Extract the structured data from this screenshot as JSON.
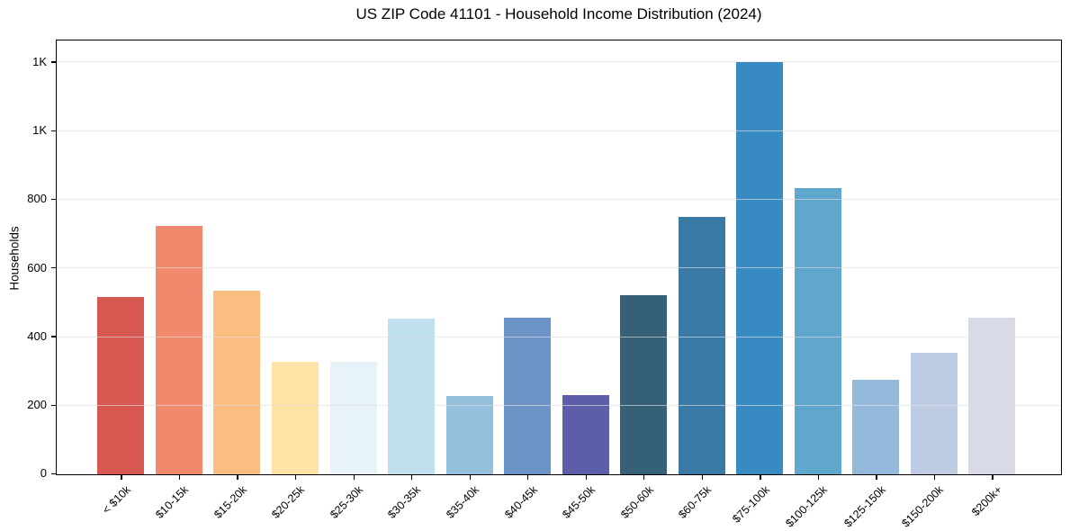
{
  "chart_data": {
    "type": "bar",
    "title": "US ZIP Code 41101 - Household Income Distribution (2024)",
    "xlabel": "",
    "ylabel": "Households",
    "categories": [
      "< $10k",
      "$10-15k",
      "$15-20k",
      "$20-25k",
      "$25-30k",
      "$30-35k",
      "$35-40k",
      "$40-45k",
      "$45-50k",
      "$50-60k",
      "$60-75k",
      "$75-100k",
      "$100-125k",
      "$125-150k",
      "$150-200k",
      "$200k+"
    ],
    "values": [
      517,
      723,
      536,
      329,
      327,
      455,
      227,
      456,
      230,
      522,
      750,
      1201,
      833,
      276,
      355,
      456
    ],
    "bar_colors": [
      "#d65850",
      "#f18a6d",
      "#fcbd80",
      "#fde3a6",
      "#e7f3f8",
      "#bfe0ec",
      "#95c0de",
      "#6b93c6",
      "#5c5fa8",
      "#366078",
      "#3879a5",
      "#378bc2",
      "#60a7cd",
      "#95b9da",
      "#bdcbe3",
      "#d9dae8"
    ],
    "ylim": [
      0,
      1261
    ],
    "ytick_values": [
      0,
      200,
      400,
      600,
      800,
      1000,
      1200
    ],
    "ytick_labels": [
      "0",
      "200",
      "400",
      "600",
      "800",
      "1K",
      "1K"
    ],
    "grid": "horizontal",
    "legend": "none",
    "gridline_color": "#e6e6e6",
    "spine_color": "#000000",
    "background_color": "#ffffff"
  }
}
